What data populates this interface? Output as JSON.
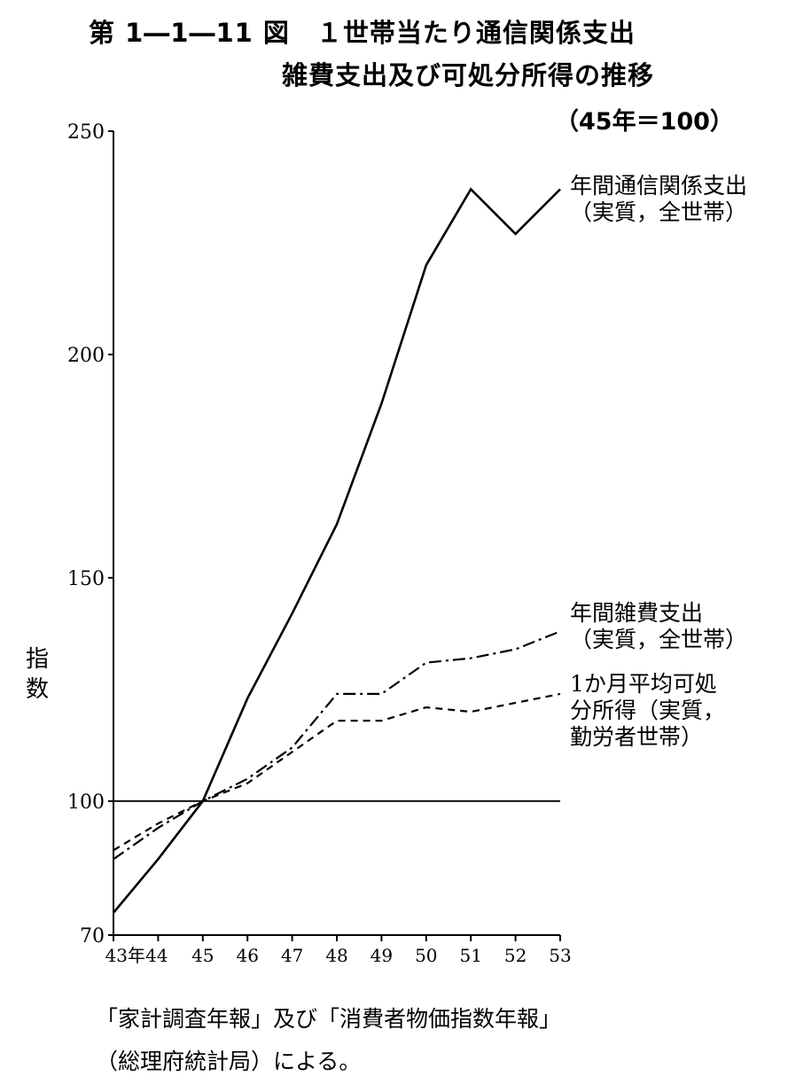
{
  "figure": {
    "title_line1": "第 1―1―11 図　１世帯当たり通信関係支出",
    "title_line2": "雑費支出及び可処分所得の推移",
    "subtitle": "（45年＝100）",
    "source_line1": "「家計調査年報」及び「消費者物価指数年報」",
    "source_line2": "（総理府統計局）による。"
  },
  "chart_data": {
    "type": "line",
    "ylabel": "指数",
    "ylim": [
      70,
      250
    ],
    "yticks": [
      70,
      100,
      150,
      200,
      250
    ],
    "xlim": [
      43,
      53
    ],
    "x": [
      43,
      44,
      45,
      46,
      47,
      48,
      49,
      50,
      51,
      52,
      53
    ],
    "x_tick_labels": [
      "43年44",
      "45",
      "46",
      "47",
      "48",
      "49",
      "50",
      "51",
      "52",
      "53"
    ],
    "reference_line": 100,
    "series": [
      {
        "name": [
          "年間通信関係支出",
          "（実質，全世帯）"
        ],
        "style": "solid",
        "values": [
          75,
          87,
          100,
          123,
          142,
          162,
          189,
          220,
          237,
          227,
          237
        ]
      },
      {
        "name": [
          "年間雑費支出",
          "（実質，全世帯）"
        ],
        "style": "dashdot",
        "values": [
          87,
          94,
          100,
          105,
          112,
          124,
          124,
          131,
          132,
          134,
          138
        ]
      },
      {
        "name": [
          "1か月平均可処",
          "分所得（実質，",
          "勤労者世帯）"
        ],
        "style": "dashed",
        "values": [
          89,
          95,
          100,
          104,
          111,
          118,
          118,
          121,
          120,
          122,
          124
        ]
      }
    ]
  }
}
